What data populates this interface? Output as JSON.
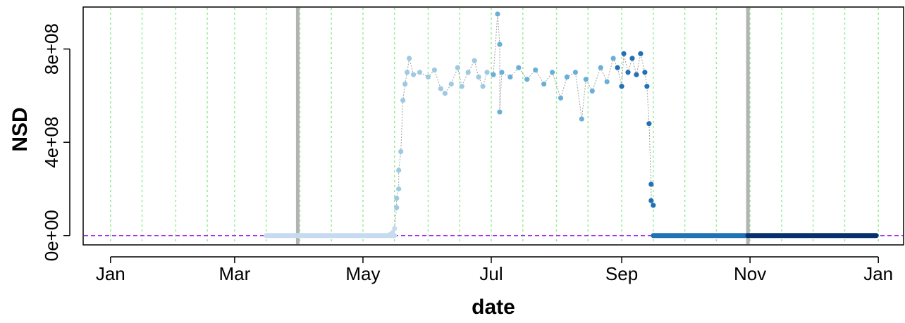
{
  "chart_data": {
    "type": "scatter",
    "title": "",
    "xlabel": "date",
    "ylabel": "NSD",
    "x_ticks": [
      "Jan",
      "Mar",
      "May",
      "Jul",
      "Sep",
      "Nov",
      "Jan"
    ],
    "y_ticks": [
      "0e+00",
      "4e+08",
      "8e+08"
    ],
    "y_tick_values": [
      0,
      400000000,
      800000000
    ],
    "x_tick_dates": [
      "2015-01-01",
      "2015-03-01",
      "2015-05-01",
      "2015-07-01",
      "2015-09-01",
      "2015-11-01",
      "2016-01-01"
    ],
    "xlim": [
      "2014-12-19",
      "2016-01-13"
    ],
    "ylim": [
      -40000000,
      980000000
    ],
    "reference_line_y": 0,
    "reference_line_color": "#a020f0",
    "vertical_markers": [
      "2015-03-31",
      "2015-10-31"
    ],
    "vertical_marker_color": "#b3b3b3",
    "grid_color": "#90ee90",
    "grid": true,
    "legend": "none",
    "series": [
      {
        "color": "#c6dbef",
        "segments": [
          {
            "from": "2015-03-16",
            "to": "2015-05-16",
            "y": 0
          }
        ],
        "points": [
          {
            "x": "2015-05-14",
            "y": 5000000
          },
          {
            "x": "2015-05-15",
            "y": 12000000
          },
          {
            "x": "2015-05-16",
            "y": 30000000
          }
        ]
      },
      {
        "color": "#9ecae1",
        "points": [
          {
            "x": "2015-05-17",
            "y": 120000000
          },
          {
            "x": "2015-05-17",
            "y": 160000000
          },
          {
            "x": "2015-05-18",
            "y": 200000000
          },
          {
            "x": "2015-05-18",
            "y": 280000000
          },
          {
            "x": "2015-05-19",
            "y": 360000000
          },
          {
            "x": "2015-05-20",
            "y": 580000000
          },
          {
            "x": "2015-05-21",
            "y": 650000000
          },
          {
            "x": "2015-05-22",
            "y": 700000000
          },
          {
            "x": "2015-05-23",
            "y": 760000000
          },
          {
            "x": "2015-05-25",
            "y": 690000000
          },
          {
            "x": "2015-05-28",
            "y": 700000000
          },
          {
            "x": "2015-06-01",
            "y": 680000000
          },
          {
            "x": "2015-06-04",
            "y": 710000000
          },
          {
            "x": "2015-06-07",
            "y": 630000000
          },
          {
            "x": "2015-06-09",
            "y": 610000000
          },
          {
            "x": "2015-06-12",
            "y": 650000000
          },
          {
            "x": "2015-06-15",
            "y": 720000000
          },
          {
            "x": "2015-06-17",
            "y": 640000000
          },
          {
            "x": "2015-06-20",
            "y": 700000000
          },
          {
            "x": "2015-06-23",
            "y": 750000000
          },
          {
            "x": "2015-06-25",
            "y": 680000000
          },
          {
            "x": "2015-06-27",
            "y": 640000000
          },
          {
            "x": "2015-06-29",
            "y": 700000000
          }
        ]
      },
      {
        "color": "#6baed6",
        "points": [
          {
            "x": "2015-07-02",
            "y": 690000000
          },
          {
            "x": "2015-07-04",
            "y": 950000000
          },
          {
            "x": "2015-07-05",
            "y": 820000000
          },
          {
            "x": "2015-07-05",
            "y": 530000000
          },
          {
            "x": "2015-07-06",
            "y": 700000000
          },
          {
            "x": "2015-07-10",
            "y": 680000000
          },
          {
            "x": "2015-07-14",
            "y": 720000000
          },
          {
            "x": "2015-07-18",
            "y": 670000000
          },
          {
            "x": "2015-07-22",
            "y": 710000000
          },
          {
            "x": "2015-07-26",
            "y": 650000000
          },
          {
            "x": "2015-07-30",
            "y": 700000000
          },
          {
            "x": "2015-08-03",
            "y": 590000000
          },
          {
            "x": "2015-08-06",
            "y": 680000000
          },
          {
            "x": "2015-08-10",
            "y": 700000000
          },
          {
            "x": "2015-08-13",
            "y": 500000000
          },
          {
            "x": "2015-08-15",
            "y": 670000000
          },
          {
            "x": "2015-08-18",
            "y": 620000000
          },
          {
            "x": "2015-08-22",
            "y": 720000000
          },
          {
            "x": "2015-08-25",
            "y": 660000000
          },
          {
            "x": "2015-08-28",
            "y": 760000000
          }
        ]
      },
      {
        "color": "#2171b5",
        "points": [
          {
            "x": "2015-08-30",
            "y": 720000000
          },
          {
            "x": "2015-09-01",
            "y": 640000000
          },
          {
            "x": "2015-09-02",
            "y": 780000000
          },
          {
            "x": "2015-09-04",
            "y": 700000000
          },
          {
            "x": "2015-09-06",
            "y": 760000000
          },
          {
            "x": "2015-09-08",
            "y": 690000000
          },
          {
            "x": "2015-09-10",
            "y": 780000000
          },
          {
            "x": "2015-09-12",
            "y": 700000000
          },
          {
            "x": "2015-09-13",
            "y": 640000000
          },
          {
            "x": "2015-09-14",
            "y": 480000000
          },
          {
            "x": "2015-09-15",
            "y": 220000000
          },
          {
            "x": "2015-09-15",
            "y": 150000000
          },
          {
            "x": "2015-09-16",
            "y": 130000000
          }
        ],
        "segments": [
          {
            "from": "2015-09-16",
            "to": "2015-10-31",
            "y": 0
          }
        ]
      },
      {
        "color": "#08306b",
        "segments": [
          {
            "from": "2015-10-31",
            "to": "2015-12-31",
            "y": 0
          }
        ],
        "points": []
      }
    ]
  }
}
